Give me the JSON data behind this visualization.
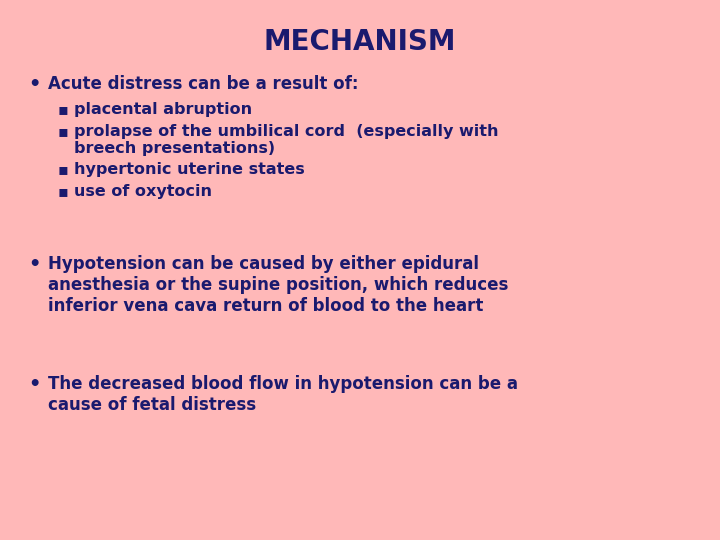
{
  "title": "MECHANISM",
  "title_color": "#1a1a6e",
  "background_color": "#ffb8b8",
  "text_color": "#1a1a6e",
  "bullet1_main": "Acute distress can be a result of:",
  "bullet1_subs": [
    "placental abruption",
    "prolapse of the umbilical cord  (especially with\nbreech presentations)",
    "hypertonic uterine states",
    "use of oxytocin"
  ],
  "bullet2_main": "Hypotension can be caused by either epidural\nanesthesia or the supine position, which reduces\ninferior vena cava return of blood to the heart",
  "bullet3_main": "The decreased blood flow in hypotension can be a\ncause of fetal distress",
  "title_fontsize": 20,
  "main_fontsize": 12,
  "sub_fontsize": 11.5
}
